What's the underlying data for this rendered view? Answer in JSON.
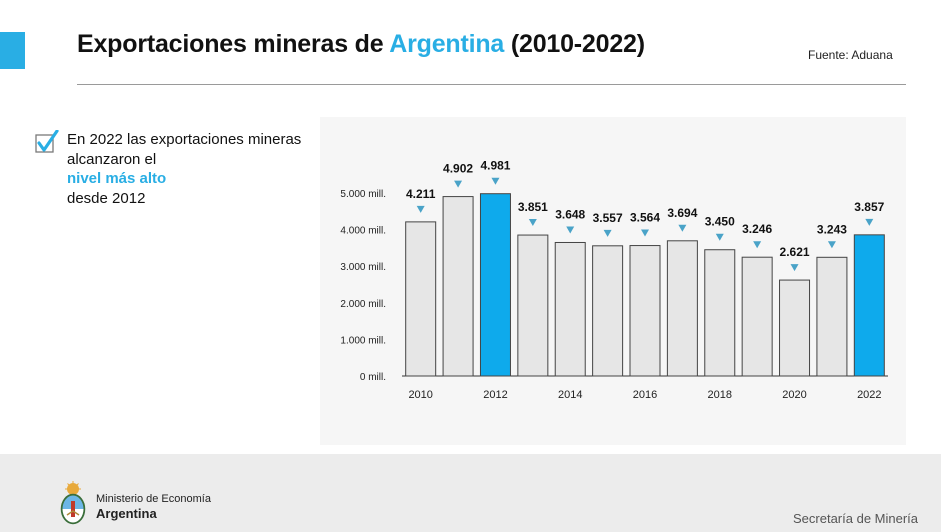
{
  "header": {
    "title_pre": "Exportaciones mineras de ",
    "title_highlight": "Argentina",
    "title_post": " (2010-2022)",
    "source": "Fuente: Aduana",
    "accent_color": "#29aee4"
  },
  "bullet": {
    "icon": "checkmark-icon",
    "line1": "En 2022 las exportaciones mineras alcanzaron el",
    "highlight": "nivel más alto",
    "line3": "desde 2012"
  },
  "chart_data": {
    "type": "bar",
    "title": "",
    "xlabel": "",
    "ylabel": "",
    "ylim": [
      0,
      5000
    ],
    "yticks": [
      0,
      1000,
      2000,
      3000,
      4000,
      5000
    ],
    "ytick_labels": [
      "0 mill.",
      "1.000 mill.",
      "2.000 mill.",
      "3.000 mill.",
      "4.000 mill.",
      "5.000 mill."
    ],
    "categories": [
      "2010",
      "2011",
      "2012",
      "2013",
      "2014",
      "2015",
      "2016",
      "2017",
      "2018",
      "2019",
      "2020",
      "2021",
      "2022"
    ],
    "xtick_labels": [
      "2010",
      "",
      "2012",
      "",
      "2014",
      "",
      "2016",
      "",
      "2018",
      "",
      "2020",
      "",
      "2022"
    ],
    "values": [
      4211,
      4902,
      4981,
      3851,
      3648,
      3557,
      3564,
      3694,
      3450,
      3246,
      2621,
      3243,
      3857
    ],
    "value_labels": [
      "4.211",
      "4.902",
      "4.981",
      "3.851",
      "3.648",
      "3.557",
      "3.564",
      "3.694",
      "3.450",
      "3.246",
      "2.621",
      "3.243",
      "3.857"
    ],
    "highlighted": [
      "2012",
      "2022"
    ],
    "colors": {
      "default": "#e6e6e6",
      "highlight": "#0eaaec",
      "marker": "#4aa3c8",
      "stroke": "#444444"
    },
    "grid": false,
    "legend": "none"
  },
  "footer": {
    "logo_icon": "coat-of-arms-icon",
    "ministry": "Ministerio de Economía",
    "country": "Argentina",
    "secretaria": "Secretaría de Minería"
  }
}
